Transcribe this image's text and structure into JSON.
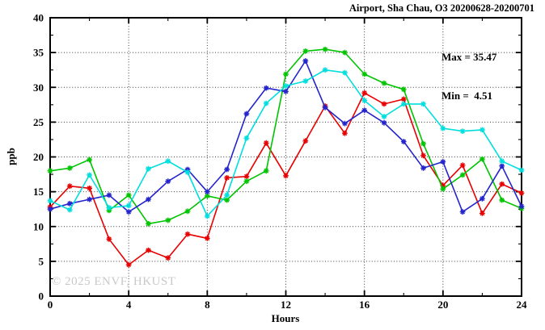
{
  "header": {
    "title": "Airport, Sha Chau, O3 20200628-20200701"
  },
  "annotation": {
    "max_label": "Max = 35.47",
    "min_label": "Min =  4.51"
  },
  "watermark": "© 2025 ENVF, HKUST",
  "chart_data": {
    "type": "line",
    "title": "Airport, Sha Chau, O3 20200628-20200701",
    "xlabel": "Hours",
    "ylabel": "ppb",
    "xlim": [
      0,
      24
    ],
    "ylim": [
      0,
      40
    ],
    "x_major_ticks": [
      0,
      4,
      8,
      12,
      16,
      20,
      24
    ],
    "x_minor_ticks": [
      2,
      6,
      10,
      14,
      18,
      22
    ],
    "y_major_ticks": [
      0,
      5,
      10,
      15,
      20,
      25,
      30,
      35,
      40
    ],
    "y_minor_ticks": [
      2.5,
      7.5,
      12.5,
      17.5,
      22.5,
      27.5,
      32.5,
      37.5
    ],
    "grid": "dotted-at-major-ticks",
    "legend": "none",
    "marker": "asterisk",
    "max_value": 35.47,
    "min_value": 4.51,
    "x": [
      0,
      1,
      2,
      3,
      4,
      5,
      6,
      7,
      8,
      9,
      10,
      11,
      12,
      13,
      14,
      15,
      16,
      17,
      18,
      19,
      20,
      21,
      22,
      23,
      24
    ],
    "series": [
      {
        "name": "series-red",
        "color": "#e80000",
        "values": [
          12.8,
          15.8,
          15.5,
          8.2,
          4.51,
          6.6,
          5.5,
          8.9,
          8.3,
          17.0,
          17.2,
          22.0,
          17.3,
          22.3,
          27.3,
          23.4,
          29.2,
          27.6,
          28.3,
          20.2,
          15.9,
          18.8,
          11.9,
          16.1,
          14.8
        ]
      },
      {
        "name": "series-green",
        "color": "#00c400",
        "values": [
          18.0,
          18.4,
          19.6,
          12.3,
          14.5,
          10.4,
          10.9,
          12.2,
          14.4,
          13.8,
          16.5,
          18.0,
          31.9,
          35.2,
          35.47,
          35.0,
          31.9,
          30.6,
          29.7,
          21.9,
          15.4,
          17.4,
          19.7,
          13.8,
          12.6
        ]
      },
      {
        "name": "series-blue",
        "color": "#2424cc",
        "values": [
          12.5,
          13.3,
          13.9,
          14.5,
          12.1,
          13.9,
          16.5,
          18.2,
          15.0,
          18.2,
          26.2,
          29.9,
          29.4,
          33.8,
          27.1,
          24.8,
          26.7,
          24.9,
          22.2,
          18.4,
          19.3,
          12.1,
          14.0,
          18.7,
          12.9
        ]
      },
      {
        "name": "series-cyan",
        "color": "#00dede",
        "values": [
          13.7,
          12.4,
          17.4,
          12.7,
          13.0,
          18.3,
          19.4,
          17.8,
          11.5,
          14.5,
          22.7,
          27.7,
          30.2,
          30.9,
          32.5,
          32.1,
          28.1,
          25.8,
          27.6,
          27.6,
          24.1,
          23.7,
          23.9,
          19.4,
          18.1
        ]
      }
    ]
  }
}
